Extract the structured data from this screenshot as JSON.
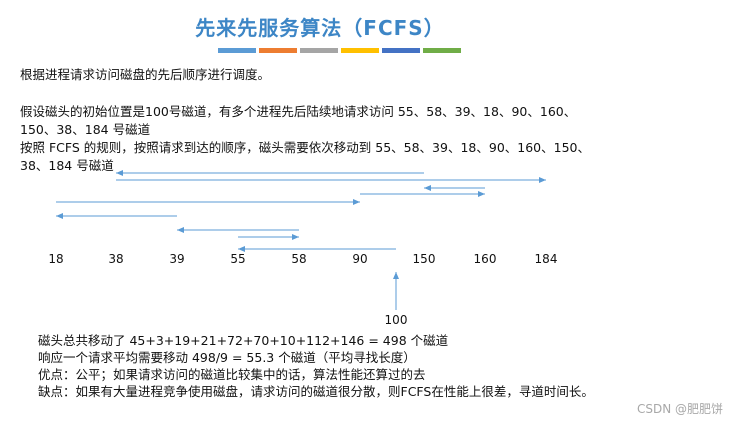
{
  "title": "先来先服务算法（FCFS）",
  "title_bar_colors": [
    "#5b9bd5",
    "#ed7d31",
    "#a5a5a5",
    "#ffc000",
    "#4472c4",
    "#70ad47"
  ],
  "intro": "根据进程请求访问磁盘的先后顺序进行调度。",
  "assume_line1": "假设磁头的初始位置是100号磁道，有多个进程先后陆续地请求访问  55、58、39、18、90、160、",
  "assume_line2": "150、38、184 号磁道",
  "rule_line1": "按照 FCFS 的规则，按照请求到达的顺序，磁头需要依次移动到  55、58、39、18、90、160、150、",
  "rule_line2": "38、184 号磁道",
  "axis_labels": [
    "18",
    "38",
    "39",
    "55",
    "58",
    "90",
    "150",
    "160",
    "184"
  ],
  "start_label": "100",
  "seek_sequence": [
    100,
    55,
    58,
    39,
    18,
    90,
    160,
    150,
    38,
    184
  ],
  "arrow_color": "#5b9bd5",
  "summary_total": "磁头总共移动了  45+3+19+21+72+70+10+112+146  = 498  个磁道",
  "summary_avg": "响应一个请求平均需要移动  498/9 = 55.3 个磁道（平均寻找长度）",
  "pros": "优点：公平；如果请求访问的磁道比较集中的话，算法性能还算过的去",
  "cons": "缺点：如果有大量进程竞争使用磁盘，请求访问的磁道很分散，则FCFS在性能上很差，寻道时间长。",
  "watermark": "CSDN @肥肥饼"
}
